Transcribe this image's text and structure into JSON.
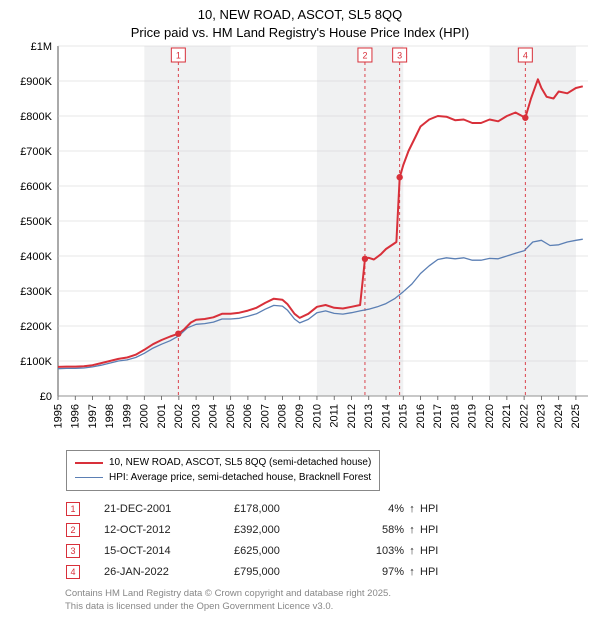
{
  "title_line1": "10, NEW ROAD, ASCOT, SL5 8QQ",
  "title_line2": "Price paid vs. HM Land Registry's House Price Index (HPI)",
  "chart": {
    "type": "line",
    "background_color": "#ffffff",
    "plot_bg_alt_color": "#f0f1f2",
    "grid_color": "#d0d0d0",
    "axis_color": "#555555",
    "label_fontsize": 11,
    "xlim": [
      1995,
      2025.7
    ],
    "ylim": [
      0,
      1000000
    ],
    "yticks": [
      0,
      100000,
      200000,
      300000,
      400000,
      500000,
      600000,
      700000,
      800000,
      900000,
      1000000
    ],
    "ytick_labels": [
      "£0",
      "£100K",
      "£200K",
      "£300K",
      "£400K",
      "£500K",
      "£600K",
      "£700K",
      "£800K",
      "£900K",
      "£1M"
    ],
    "xticks": [
      1995,
      1996,
      1997,
      1998,
      1999,
      2000,
      2001,
      2002,
      2003,
      2004,
      2005,
      2006,
      2007,
      2008,
      2009,
      2010,
      2011,
      2012,
      2013,
      2014,
      2015,
      2016,
      2017,
      2018,
      2019,
      2020,
      2021,
      2022,
      2023,
      2024,
      2025
    ],
    "xtick_labels": [
      "1995",
      "1996",
      "1997",
      "1998",
      "1999",
      "2000",
      "2001",
      "2002",
      "2003",
      "2004",
      "2005",
      "2006",
      "2007",
      "2008",
      "2009",
      "2010",
      "2011",
      "2012",
      "2013",
      "2014",
      "2015",
      "2016",
      "2017",
      "2018",
      "2019",
      "2020",
      "2021",
      "2022",
      "2023",
      "2024",
      "2025"
    ],
    "series": [
      {
        "name": "property",
        "label": "10, NEW ROAD, ASCOT, SL5 8QQ (semi-detached house)",
        "color": "#d8303a",
        "marker_color": "#d8303a",
        "line_width": 2,
        "data": [
          [
            1995.0,
            83000
          ],
          [
            1995.5,
            84000
          ],
          [
            1996.0,
            84000
          ],
          [
            1996.5,
            85000
          ],
          [
            1997.0,
            88000
          ],
          [
            1997.5,
            94000
          ],
          [
            1998.0,
            100000
          ],
          [
            1998.5,
            106000
          ],
          [
            1999.0,
            110000
          ],
          [
            1999.5,
            118000
          ],
          [
            2000.0,
            132000
          ],
          [
            2000.5,
            148000
          ],
          [
            2001.0,
            160000
          ],
          [
            2001.5,
            170000
          ],
          [
            2001.97,
            178000
          ],
          [
            2002.3,
            190000
          ],
          [
            2002.7,
            210000
          ],
          [
            2003.0,
            218000
          ],
          [
            2003.5,
            220000
          ],
          [
            2004.0,
            225000
          ],
          [
            2004.5,
            235000
          ],
          [
            2005.0,
            235000
          ],
          [
            2005.5,
            238000
          ],
          [
            2006.0,
            244000
          ],
          [
            2006.5,
            252000
          ],
          [
            2007.0,
            266000
          ],
          [
            2007.5,
            278000
          ],
          [
            2008.0,
            275000
          ],
          [
            2008.3,
            262000
          ],
          [
            2008.7,
            235000
          ],
          [
            2009.0,
            223000
          ],
          [
            2009.5,
            235000
          ],
          [
            2010.0,
            255000
          ],
          [
            2010.5,
            260000
          ],
          [
            2011.0,
            252000
          ],
          [
            2011.5,
            250000
          ],
          [
            2012.0,
            255000
          ],
          [
            2012.5,
            260000
          ],
          [
            2012.78,
            392000
          ],
          [
            2013.0,
            395000
          ],
          [
            2013.3,
            390000
          ],
          [
            2013.7,
            405000
          ],
          [
            2014.0,
            420000
          ],
          [
            2014.3,
            430000
          ],
          [
            2014.6,
            440000
          ],
          [
            2014.79,
            625000
          ],
          [
            2015.0,
            660000
          ],
          [
            2015.3,
            700000
          ],
          [
            2015.7,
            740000
          ],
          [
            2016.0,
            770000
          ],
          [
            2016.5,
            790000
          ],
          [
            2017.0,
            800000
          ],
          [
            2017.5,
            798000
          ],
          [
            2018.0,
            788000
          ],
          [
            2018.5,
            790000
          ],
          [
            2019.0,
            780000
          ],
          [
            2019.5,
            780000
          ],
          [
            2020.0,
            790000
          ],
          [
            2020.5,
            785000
          ],
          [
            2021.0,
            800000
          ],
          [
            2021.5,
            810000
          ],
          [
            2022.07,
            795000
          ],
          [
            2022.4,
            850000
          ],
          [
            2022.8,
            905000
          ],
          [
            2023.0,
            880000
          ],
          [
            2023.3,
            855000
          ],
          [
            2023.7,
            850000
          ],
          [
            2024.0,
            870000
          ],
          [
            2024.5,
            865000
          ],
          [
            2025.0,
            880000
          ],
          [
            2025.4,
            885000
          ]
        ],
        "markers": [
          {
            "x": 2001.97,
            "y": 178000
          },
          {
            "x": 2012.78,
            "y": 392000
          },
          {
            "x": 2014.79,
            "y": 625000
          },
          {
            "x": 2022.07,
            "y": 795000
          }
        ]
      },
      {
        "name": "hpi",
        "label": "HPI: Average price, semi-detached house, Bracknell Forest",
        "color": "#5b7fb4",
        "line_width": 1.3,
        "data": [
          [
            1995.0,
            78000
          ],
          [
            1995.5,
            79000
          ],
          [
            1996.0,
            79000
          ],
          [
            1996.5,
            80000
          ],
          [
            1997.0,
            83000
          ],
          [
            1997.5,
            88000
          ],
          [
            1998.0,
            94000
          ],
          [
            1998.5,
            100000
          ],
          [
            1999.0,
            103000
          ],
          [
            1999.5,
            110000
          ],
          [
            2000.0,
            122000
          ],
          [
            2000.5,
            137000
          ],
          [
            2001.0,
            148000
          ],
          [
            2001.5,
            158000
          ],
          [
            2002.0,
            172000
          ],
          [
            2002.5,
            195000
          ],
          [
            2003.0,
            205000
          ],
          [
            2003.5,
            207000
          ],
          [
            2004.0,
            211000
          ],
          [
            2004.5,
            220000
          ],
          [
            2005.0,
            220000
          ],
          [
            2005.5,
            222000
          ],
          [
            2006.0,
            228000
          ],
          [
            2006.5,
            235000
          ],
          [
            2007.0,
            248000
          ],
          [
            2007.5,
            259000
          ],
          [
            2008.0,
            257000
          ],
          [
            2008.3,
            245000
          ],
          [
            2008.7,
            220000
          ],
          [
            2009.0,
            209000
          ],
          [
            2009.5,
            219000
          ],
          [
            2010.0,
            238000
          ],
          [
            2010.5,
            243000
          ],
          [
            2011.0,
            236000
          ],
          [
            2011.5,
            234000
          ],
          [
            2012.0,
            238000
          ],
          [
            2012.5,
            243000
          ],
          [
            2013.0,
            248000
          ],
          [
            2013.5,
            255000
          ],
          [
            2014.0,
            264000
          ],
          [
            2014.5,
            278000
          ],
          [
            2015.0,
            298000
          ],
          [
            2015.5,
            320000
          ],
          [
            2016.0,
            350000
          ],
          [
            2016.5,
            372000
          ],
          [
            2017.0,
            390000
          ],
          [
            2017.5,
            395000
          ],
          [
            2018.0,
            392000
          ],
          [
            2018.5,
            395000
          ],
          [
            2019.0,
            388000
          ],
          [
            2019.5,
            388000
          ],
          [
            2020.0,
            393000
          ],
          [
            2020.5,
            392000
          ],
          [
            2021.0,
            400000
          ],
          [
            2021.5,
            408000
          ],
          [
            2022.0,
            415000
          ],
          [
            2022.5,
            440000
          ],
          [
            2023.0,
            445000
          ],
          [
            2023.5,
            430000
          ],
          [
            2024.0,
            432000
          ],
          [
            2024.5,
            440000
          ],
          [
            2025.0,
            445000
          ],
          [
            2025.4,
            448000
          ]
        ]
      }
    ],
    "event_markers": [
      {
        "n": "1",
        "x": 2001.97,
        "date": "21-DEC-2001",
        "price": "£178,000",
        "pct": "4%",
        "dir": "↑",
        "suffix": "HPI"
      },
      {
        "n": "2",
        "x": 2012.78,
        "date": "12-OCT-2012",
        "price": "£392,000",
        "pct": "58%",
        "dir": "↑",
        "suffix": "HPI"
      },
      {
        "n": "3",
        "x": 2014.79,
        "date": "15-OCT-2014",
        "price": "£625,000",
        "pct": "103%",
        "dir": "↑",
        "suffix": "HPI"
      },
      {
        "n": "4",
        "x": 2022.07,
        "date": "26-JAN-2022",
        "price": "£795,000",
        "pct": "97%",
        "dir": "↑",
        "suffix": "HPI"
      }
    ],
    "event_line_color": "#d8303a",
    "event_box_border": "#d8303a",
    "event_box_text": "#d8303a"
  },
  "attribution_line1": "Contains HM Land Registry data © Crown copyright and database right 2025.",
  "attribution_line2": "This data is licensed under the Open Government Licence v3.0."
}
